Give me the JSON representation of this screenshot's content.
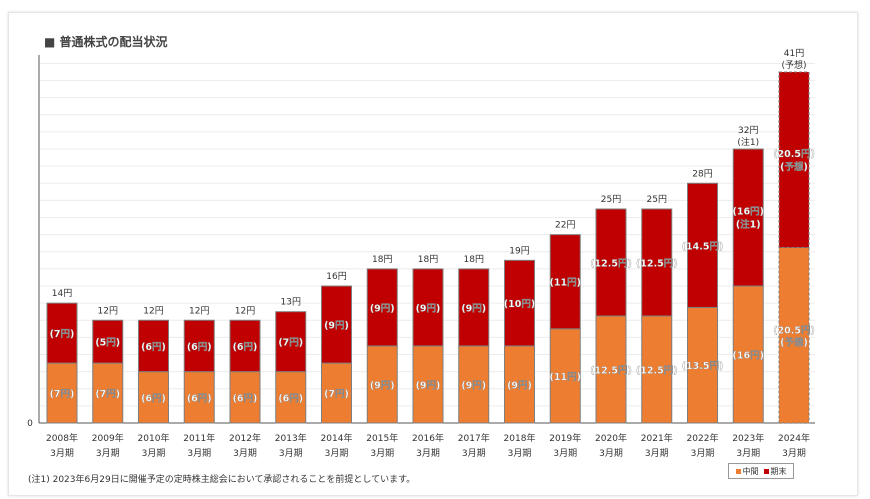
{
  "title": "■ 普通株式の配当状況",
  "note": "(注1) 2023年6月29日に開催予定の定時株主総会において承認されることを前提としています。",
  "chart_data": {
    "type": "bar",
    "stacked": true,
    "title": "普通株式の配当状況",
    "categories": [
      "2008年",
      "2009年",
      "2010年",
      "2011年",
      "2012年",
      "2013年",
      "2014年",
      "2015年",
      "2016年",
      "2017年",
      "2018年",
      "2019年",
      "2020年",
      "2021年",
      "2022年",
      "2023年",
      "2024年"
    ],
    "category_sub": "3月期",
    "series": [
      {
        "name": "中間",
        "color": "#ED7D31",
        "values": [
          7,
          7,
          6,
          6,
          6,
          6,
          7,
          9,
          9,
          9,
          9,
          11,
          12.5,
          12.5,
          13.5,
          16,
          20.5
        ]
      },
      {
        "name": "期末",
        "color": "#C00000",
        "values": [
          7,
          5,
          6,
          6,
          6,
          7,
          9,
          9,
          9,
          9,
          10,
          11,
          12.5,
          12.5,
          14.5,
          16,
          20.5
        ]
      }
    ],
    "totals": [
      14,
      12,
      12,
      12,
      12,
      13,
      16,
      18,
      18,
      18,
      19,
      22,
      25,
      25,
      28,
      32,
      41
    ],
    "total_notes": {
      "15": "(注1)",
      "16": "(予想)"
    },
    "segment_notes": {
      "interim": {
        "16": "(予想)"
      },
      "yearend": {
        "15": "(注1)",
        "16": "(予想)"
      }
    },
    "forecast_index": 16,
    "unit": "円",
    "ytick_label": "0",
    "ylim": [
      0,
      41
    ],
    "grid": true,
    "legend": "bottom-right"
  }
}
